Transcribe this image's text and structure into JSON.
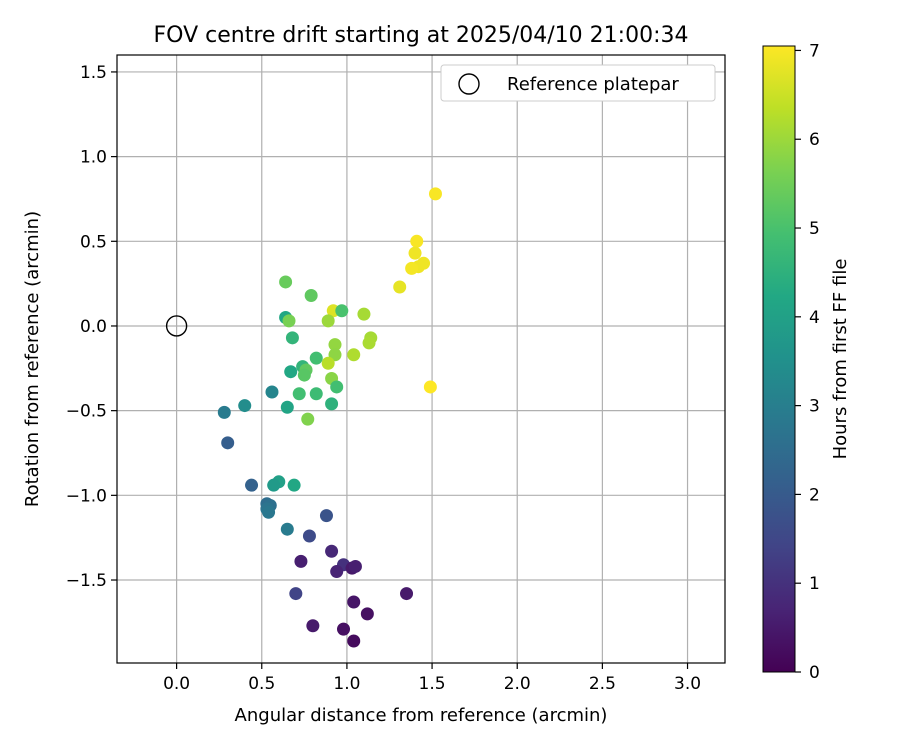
{
  "chart_data": {
    "type": "scatter",
    "title": "FOV centre drift starting at 2025/04/10 21:00:34",
    "xlabel": "Angular distance from reference (arcmin)",
    "ylabel": "Rotation from reference (arcmin)",
    "xlim": [
      -0.35,
      3.22
    ],
    "ylim": [
      -1.99,
      1.6
    ],
    "xticks": [
      "0.0",
      "0.5",
      "1.0",
      "1.5",
      "2.0",
      "2.5",
      "3.0"
    ],
    "yticks": [
      "1.5",
      "1.0",
      "0.5",
      "0.0",
      "−0.5",
      "−1.0",
      "−1.5"
    ],
    "grid": true,
    "legend": {
      "placement": "top-right",
      "entries": [
        "Reference platepar"
      ]
    },
    "reference_point": {
      "x": 0.0,
      "y": 0.0
    },
    "colorbar": {
      "label": "Hours from first FF file",
      "colormap": "viridis",
      "range": [
        0,
        7.05
      ],
      "ticks": [
        "0",
        "1",
        "2",
        "3",
        "4",
        "5",
        "6",
        "7"
      ]
    },
    "points": [
      {
        "x": 1.52,
        "y": 0.78,
        "h": 7.0
      },
      {
        "x": 1.41,
        "y": 0.5,
        "h": 7.0
      },
      {
        "x": 1.4,
        "y": 0.43,
        "h": 6.9
      },
      {
        "x": 1.45,
        "y": 0.37,
        "h": 6.9
      },
      {
        "x": 1.42,
        "y": 0.35,
        "h": 6.9
      },
      {
        "x": 1.38,
        "y": 0.34,
        "h": 6.95
      },
      {
        "x": 1.31,
        "y": 0.23,
        "h": 6.8
      },
      {
        "x": 1.49,
        "y": -0.36,
        "h": 7.05
      },
      {
        "x": 0.92,
        "y": 0.09,
        "h": 6.7
      },
      {
        "x": 1.1,
        "y": 0.07,
        "h": 6.1
      },
      {
        "x": 1.14,
        "y": -0.07,
        "h": 6.1
      },
      {
        "x": 1.13,
        "y": -0.1,
        "h": 6.15
      },
      {
        "x": 1.04,
        "y": -0.17,
        "h": 6.2
      },
      {
        "x": 0.93,
        "y": -0.11,
        "h": 5.9
      },
      {
        "x": 0.93,
        "y": -0.17,
        "h": 5.85
      },
      {
        "x": 0.89,
        "y": 0.03,
        "h": 6.0
      },
      {
        "x": 0.89,
        "y": -0.22,
        "h": 6.3
      },
      {
        "x": 0.91,
        "y": -0.31,
        "h": 5.8
      },
      {
        "x": 0.97,
        "y": 0.09,
        "h": 5.0
      },
      {
        "x": 0.64,
        "y": 0.26,
        "h": 5.4
      },
      {
        "x": 0.79,
        "y": 0.18,
        "h": 5.3
      },
      {
        "x": 0.64,
        "y": 0.05,
        "h": 4.2
      },
      {
        "x": 0.66,
        "y": 0.03,
        "h": 5.6
      },
      {
        "x": 0.68,
        "y": -0.07,
        "h": 4.6
      },
      {
        "x": 0.82,
        "y": -0.19,
        "h": 4.9
      },
      {
        "x": 0.74,
        "y": -0.24,
        "h": 4.6
      },
      {
        "x": 0.76,
        "y": -0.26,
        "h": 5.3
      },
      {
        "x": 0.75,
        "y": -0.29,
        "h": 5.2
      },
      {
        "x": 0.67,
        "y": -0.27,
        "h": 4.2
      },
      {
        "x": 0.94,
        "y": -0.36,
        "h": 4.9
      },
      {
        "x": 0.72,
        "y": -0.4,
        "h": 4.9
      },
      {
        "x": 0.82,
        "y": -0.4,
        "h": 4.8
      },
      {
        "x": 0.91,
        "y": -0.46,
        "h": 4.5
      },
      {
        "x": 0.65,
        "y": -0.48,
        "h": 4.1
      },
      {
        "x": 0.77,
        "y": -0.55,
        "h": 5.7
      },
      {
        "x": 0.56,
        "y": -0.39,
        "h": 3.2
      },
      {
        "x": 0.4,
        "y": -0.47,
        "h": 3.4
      },
      {
        "x": 0.28,
        "y": -0.51,
        "h": 2.9
      },
      {
        "x": 0.3,
        "y": -0.69,
        "h": 2.1
      },
      {
        "x": 0.44,
        "y": -0.94,
        "h": 2.2
      },
      {
        "x": 0.6,
        "y": -0.92,
        "h": 4.0
      },
      {
        "x": 0.57,
        "y": -0.94,
        "h": 3.8
      },
      {
        "x": 0.69,
        "y": -0.94,
        "h": 4.2
      },
      {
        "x": 0.53,
        "y": -1.05,
        "h": 2.5
      },
      {
        "x": 0.55,
        "y": -1.06,
        "h": 2.6
      },
      {
        "x": 0.53,
        "y": -1.08,
        "h": 2.7
      },
      {
        "x": 0.54,
        "y": -1.1,
        "h": 2.8
      },
      {
        "x": 0.65,
        "y": -1.2,
        "h": 2.9
      },
      {
        "x": 0.88,
        "y": -1.12,
        "h": 1.8
      },
      {
        "x": 0.78,
        "y": -1.24,
        "h": 1.6
      },
      {
        "x": 0.91,
        "y": -1.33,
        "h": 0.8
      },
      {
        "x": 0.73,
        "y": -1.39,
        "h": 0.6
      },
      {
        "x": 0.98,
        "y": -1.41,
        "h": 1.0
      },
      {
        "x": 1.03,
        "y": -1.43,
        "h": 0.5
      },
      {
        "x": 1.05,
        "y": -1.42,
        "h": 0.6
      },
      {
        "x": 0.94,
        "y": -1.45,
        "h": 0.7
      },
      {
        "x": 1.35,
        "y": -1.58,
        "h": 0.5
      },
      {
        "x": 0.7,
        "y": -1.58,
        "h": 1.4
      },
      {
        "x": 1.04,
        "y": -1.63,
        "h": 0.4
      },
      {
        "x": 1.12,
        "y": -1.7,
        "h": 0.3
      },
      {
        "x": 0.8,
        "y": -1.77,
        "h": 0.5
      },
      {
        "x": 0.98,
        "y": -1.79,
        "h": 0.3
      },
      {
        "x": 1.04,
        "y": -1.86,
        "h": 0.2
      }
    ]
  }
}
